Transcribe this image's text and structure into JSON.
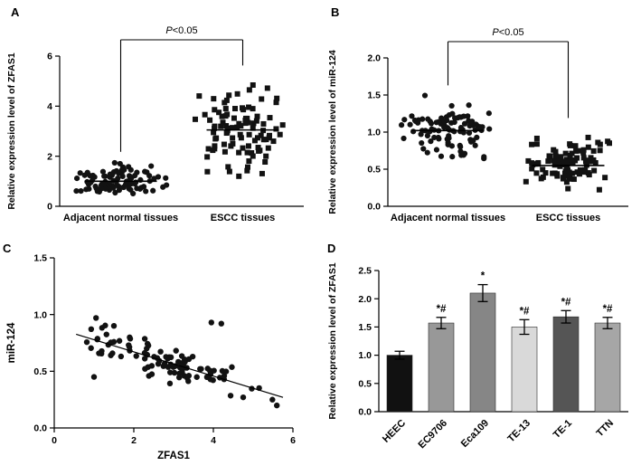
{
  "figure_background": "#ffffff",
  "marker_color": "#121212",
  "chart_data": [
    {
      "panel": "A",
      "type": "scatter",
      "style": "grouped-dot-plot",
      "ylabel": "Relative expression level of ZFAS1",
      "ylim": [
        0,
        6
      ],
      "yticks": [
        0,
        2,
        4,
        6
      ],
      "ytick_labels": [
        "0",
        "2",
        "4",
        "6"
      ],
      "categories": [
        "Adjacent normal tissues",
        "ESCC tissues"
      ],
      "significance": "P<0.05",
      "groups": [
        {
          "name": "Adjacent normal tissues",
          "marker": "circle",
          "n": 100,
          "mean": 1.0,
          "sd": 0.3,
          "min": 0.4,
          "max": 1.85,
          "seed": 11
        },
        {
          "name": "ESCC tissues",
          "marker": "square",
          "n": 100,
          "mean": 3.05,
          "sd": 0.8,
          "min": 1.1,
          "max": 5.3,
          "seed": 22
        }
      ]
    },
    {
      "panel": "B",
      "type": "scatter",
      "style": "grouped-dot-plot",
      "ylabel": "Relative expression level of miR-124",
      "ylim": [
        0,
        2
      ],
      "yticks": [
        0,
        0.5,
        1,
        1.5,
        2
      ],
      "ytick_labels": [
        "0.0",
        "0.5",
        "1.0",
        "1.5",
        "2.0"
      ],
      "categories": [
        "Adjacent normal tissues",
        "ESCC tissues"
      ],
      "significance": "P<0.05",
      "groups": [
        {
          "name": "Adjacent normal tissues",
          "marker": "circle",
          "n": 100,
          "mean": 1.02,
          "sd": 0.17,
          "min": 0.62,
          "max": 1.52,
          "seed": 33
        },
        {
          "name": "ESCC tissues",
          "marker": "square",
          "n": 100,
          "mean": 0.55,
          "sd": 0.17,
          "min": 0.18,
          "max": 1.08,
          "seed": 44
        }
      ]
    },
    {
      "panel": "C",
      "type": "scatter",
      "style": "xy-correlation",
      "xlabel": "ZFAS1",
      "ylabel": "miR-124",
      "xlim": [
        0,
        6
      ],
      "xticks": [
        0,
        2,
        4,
        6
      ],
      "xtick_labels": [
        "0",
        "2",
        "4",
        "6"
      ],
      "ylim": [
        0,
        1.5
      ],
      "yticks": [
        0,
        0.5,
        1,
        1.5
      ],
      "ytick_labels": [
        "0.0",
        "0.5",
        "1.0",
        "1.5"
      ],
      "n": 95,
      "seed": 55,
      "noise_sd": 0.07,
      "x_cluster": {
        "mean": 3.0,
        "sd": 0.8,
        "uniform_frac": 0.35,
        "range": [
          0.65,
          5.6
        ]
      },
      "trend": {
        "intercept": 0.885,
        "slope": -0.107,
        "x_start": 0.55,
        "x_end": 5.75
      },
      "outliers": [
        [
          1.05,
          0.97
        ],
        [
          1.5,
          0.9
        ],
        [
          3.95,
          0.93
        ],
        [
          4.2,
          0.92
        ],
        [
          1.0,
          0.45
        ],
        [
          4.75,
          0.27
        ]
      ]
    },
    {
      "panel": "D",
      "type": "bar",
      "ylabel": "Relative expression level of ZFAS1",
      "categories": [
        "HEEC",
        "EC9706",
        "Eca109",
        "TE-13",
        "TE-1",
        "TTN"
      ],
      "values": [
        1.0,
        1.57,
        2.1,
        1.5,
        1.68,
        1.57
      ],
      "errors": [
        0.07,
        0.1,
        0.15,
        0.13,
        0.11,
        0.1
      ],
      "annotations": [
        "",
        "*#",
        "*",
        "*#",
        "*#",
        "*#"
      ],
      "bar_colors": [
        "#111111",
        "#989898",
        "#868686",
        "#d9d9d9",
        "#555555",
        "#a6a6a6"
      ],
      "ylim": [
        0,
        2.5
      ],
      "yticks": [
        0,
        0.5,
        1,
        1.5,
        2,
        2.5
      ],
      "ytick_labels": [
        "0.0",
        "0.5",
        "1.0",
        "1.5",
        "2.0",
        "2.5"
      ]
    }
  ]
}
